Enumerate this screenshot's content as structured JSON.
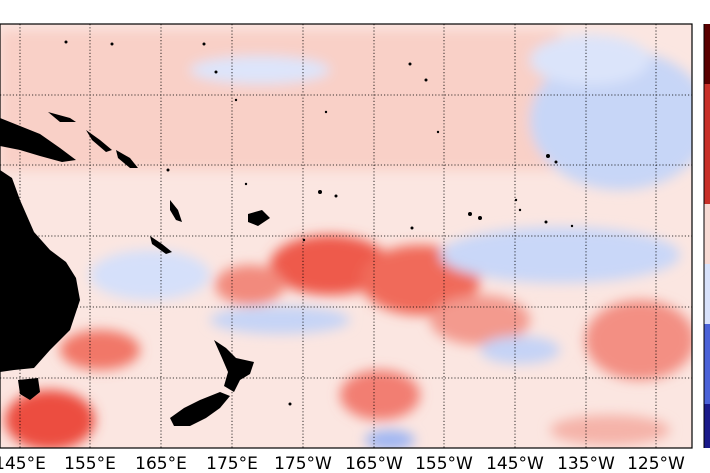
{
  "map": {
    "longitude_labels": [
      "145°E",
      "155°E",
      "165°E",
      "175°E",
      "175°W",
      "165°W",
      "155°W",
      "145°W",
      "135°W",
      "125°W"
    ],
    "colors": {
      "warm": "#e8322a",
      "warm_light": "#f6c3bb",
      "cool": "#6a8ef0",
      "cool_light": "#cfdcfa",
      "neutral": "#fbeeea",
      "land": "#000000",
      "grid": "#000000"
    },
    "colorbar": {
      "top_color": "#5a0000",
      "bottom_color": "#1a1a8a"
    }
  }
}
